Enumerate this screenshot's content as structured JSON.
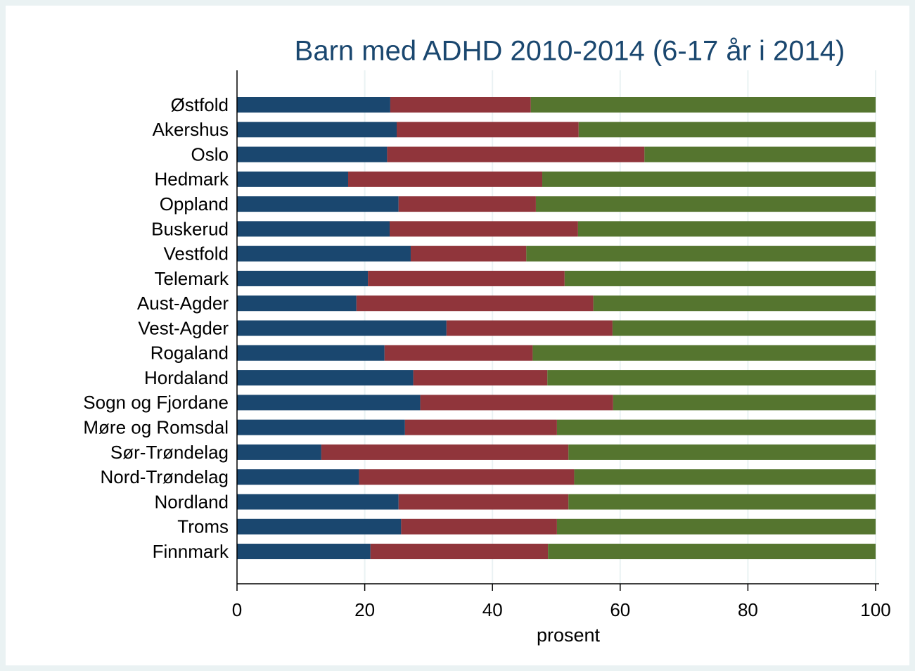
{
  "chart_data": {
    "type": "stacked_barh",
    "title": "Barn med ADHD 2010-2014 (6-17 år i 2014)",
    "x_label": "prosent",
    "categories": [
      "Østfold",
      "Akershus",
      "Oslo",
      "Hedmark",
      "Oppland",
      "Buskerud",
      "Vestfold",
      "Telemark",
      "Aust-Agder",
      "Vest-Agder",
      "Rogaland",
      "Hordaland",
      "Sogn og Fjordane",
      "Møre og Romsdal",
      "Sør-Trøndelag",
      "Nord-Trøndelag",
      "Nordland",
      "Troms",
      "Finnmark"
    ],
    "series": [
      {
        "color": "#1a476f",
        "values": [
          24.0,
          25.0,
          23.5,
          17.4,
          25.3,
          23.9,
          27.2,
          20.5,
          18.7,
          32.8,
          23.1,
          27.6,
          28.7,
          26.3,
          13.2,
          19.1,
          25.3,
          25.7,
          20.9
        ]
      },
      {
        "color": "#90353b",
        "values": [
          22.0,
          28.5,
          40.3,
          30.4,
          21.5,
          29.5,
          18.1,
          30.8,
          37.1,
          26.0,
          23.2,
          21.0,
          30.2,
          23.8,
          38.7,
          33.7,
          26.6,
          24.4,
          27.8
        ]
      },
      {
        "color": "#55752f",
        "values": [
          54.0,
          46.5,
          36.2,
          52.2,
          53.2,
          46.6,
          54.7,
          48.7,
          44.2,
          41.2,
          53.7,
          51.4,
          41.1,
          49.9,
          48.1,
          47.2,
          48.1,
          49.9,
          51.3
        ]
      }
    ],
    "xlim": [
      0,
      100
    ],
    "xticks": [
      0,
      20,
      40,
      60,
      80,
      100
    ],
    "grid": true
  }
}
